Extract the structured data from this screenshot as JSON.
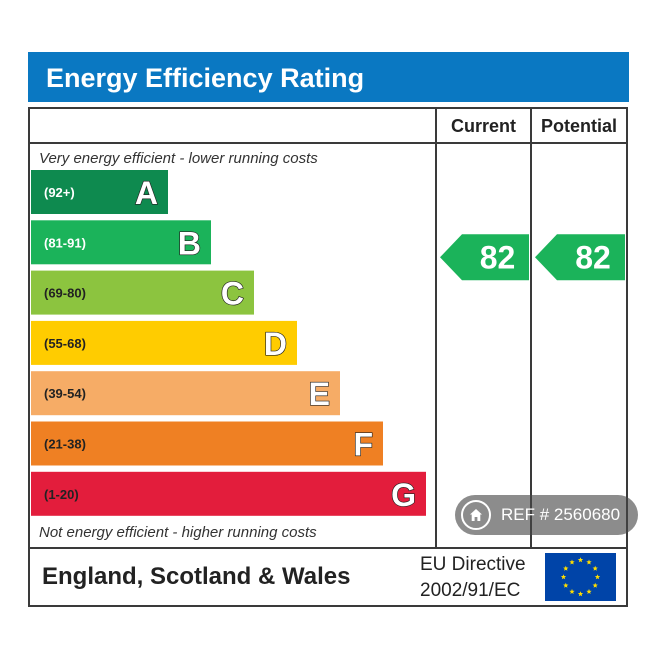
{
  "chart_data": {
    "type": "bar",
    "title": "Energy Efficiency Rating",
    "columns": [
      "Current",
      "Potential"
    ],
    "top_note": "Very energy efficient - lower running costs",
    "bottom_note": "Not energy efficient - higher running costs",
    "bands": [
      {
        "letter": "A",
        "range": "(92+)",
        "min": 92,
        "max": 100,
        "color": "#0e8a4f",
        "range_color": "#ffffff"
      },
      {
        "letter": "B",
        "range": "(81-91)",
        "min": 81,
        "max": 91,
        "color": "#1bb35a",
        "range_color": "#ffffff"
      },
      {
        "letter": "C",
        "range": "(69-80)",
        "min": 69,
        "max": 80,
        "color": "#8cc43f",
        "range_color": "#222222"
      },
      {
        "letter": "D",
        "range": "(55-68)",
        "min": 55,
        "max": 68,
        "color": "#ffcc00",
        "range_color": "#222222"
      },
      {
        "letter": "E",
        "range": "(39-54)",
        "min": 39,
        "max": 54,
        "color": "#f6ac66",
        "range_color": "#222222"
      },
      {
        "letter": "F",
        "range": "(21-38)",
        "min": 21,
        "max": 38,
        "color": "#ef8023",
        "range_color": "#222222"
      },
      {
        "letter": "G",
        "range": "(1-20)",
        "min": 1,
        "max": 20,
        "color": "#e31d3c",
        "range_color": "#222222"
      }
    ],
    "current": 82,
    "potential": 82,
    "current_band": "B",
    "potential_band": "B"
  },
  "footer": {
    "region": "England, Scotland & Wales",
    "directive_line1": "EU Directive",
    "directive_line2": "2002/91/EC"
  },
  "colors": {
    "title_bar": "#0a78c2",
    "frame": "#3a3a3a",
    "eu_flag": "#0044a8",
    "eu_stars": "#ffde00"
  },
  "badge": {
    "icon": "home-icon",
    "text": "REF # 2560680"
  }
}
